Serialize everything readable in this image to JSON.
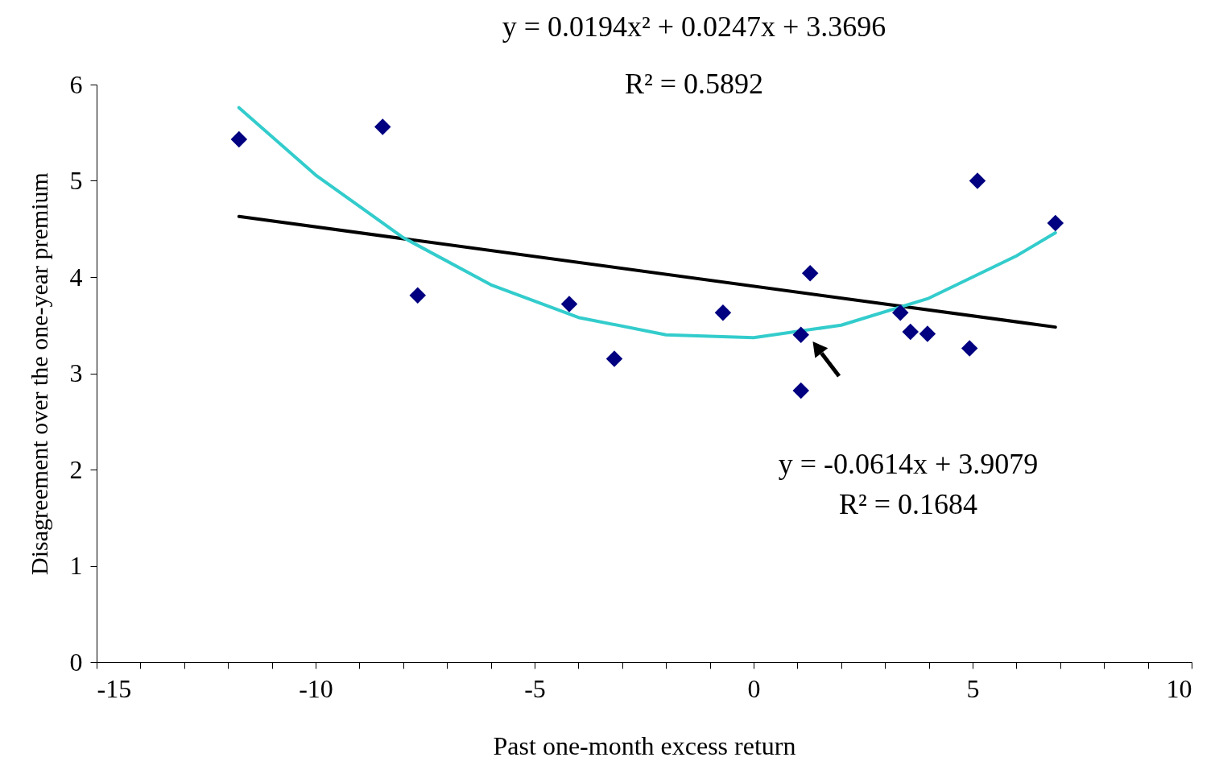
{
  "chart_data": {
    "type": "scatter",
    "xlabel": "Past one-month excess return",
    "ylabel": "Disagreement over the one-year premium",
    "annotations": [
      "y = 0.0194x² + 0.0247x + 3.3696",
      "R² = 0.5892",
      "y = -0.0614x + 3.9079",
      "R² = 0.1684"
    ],
    "series": [
      {
        "color": "#000080",
        "x": [
          -11.75,
          -8.47,
          -7.67,
          -4.21,
          -3.18,
          -0.7,
          1.08,
          1.08,
          1.29,
          3.35,
          3.58,
          3.97,
          4.93,
          5.11,
          6.89
        ],
        "values": [
          5.43,
          5.56,
          3.81,
          3.72,
          3.15,
          3.63,
          3.4,
          2.82,
          4.04,
          3.63,
          3.43,
          3.41,
          3.26,
          5.0,
          4.56
        ]
      },
      {
        "type": "line",
        "marker": "none",
        "color": "#000000",
        "x": [
          -11.75,
          6.89
        ],
        "values": [
          4.63,
          3.48
        ]
      },
      {
        "type": "line",
        "marker": "none",
        "color": "#33cccc",
        "x": [
          -11.75,
          -10,
          -8,
          -6,
          -4,
          -2,
          0,
          2,
          4,
          6,
          6.89
        ],
        "values": [
          5.76,
          5.06,
          4.41,
          3.92,
          3.58,
          3.4,
          3.37,
          3.5,
          3.78,
          4.22,
          4.46
        ]
      }
    ],
    "marker": "diamond",
    "grid": false,
    "xlim": [
      -15,
      10
    ],
    "xticks": [
      -15,
      {
        "value": -14,
        "label": null
      },
      {
        "value": -13,
        "label": null
      },
      {
        "value": -12,
        "label": null
      },
      {
        "value": -11,
        "label": null
      },
      -10,
      {
        "value": -9,
        "label": null
      },
      {
        "value": -8,
        "label": null
      },
      {
        "value": -7,
        "label": null
      },
      {
        "value": -6,
        "label": null
      },
      -5,
      {
        "value": -4,
        "label": null
      },
      {
        "value": -3,
        "label": null
      },
      {
        "value": -2,
        "label": null
      },
      {
        "value": -1,
        "label": null
      },
      0,
      {
        "value": 1,
        "label": null
      },
      {
        "value": 2,
        "label": null
      },
      {
        "value": 3,
        "label": null
      },
      {
        "value": 4,
        "label": null
      },
      5,
      {
        "value": 6,
        "label": null
      },
      {
        "value": 7,
        "label": null
      },
      {
        "value": 8,
        "label": null
      },
      {
        "value": 9,
        "label": null
      },
      10
    ],
    "ylim": [
      0,
      6
    ],
    "yticks": [
      0,
      1,
      2,
      3,
      4,
      5,
      6
    ]
  }
}
